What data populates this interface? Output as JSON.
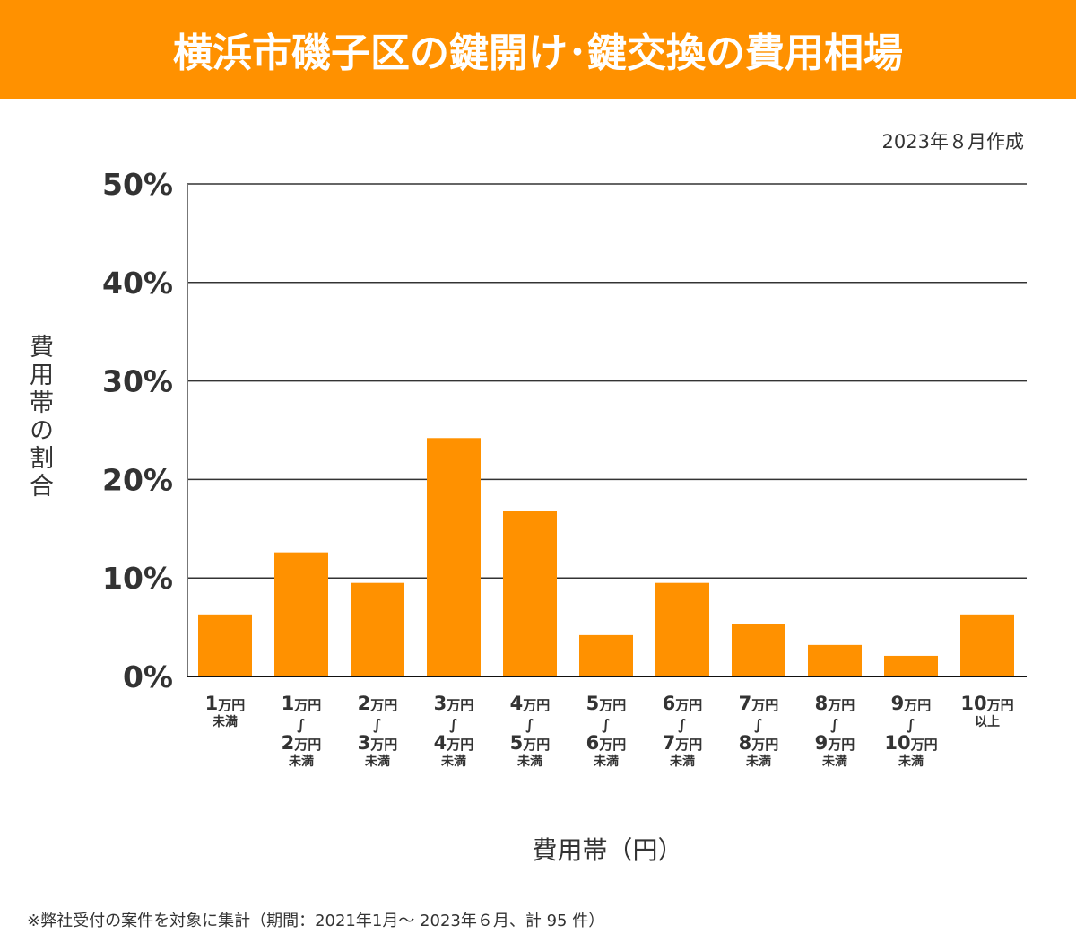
{
  "header": {
    "title": "横浜市磯子区の鍵開け･鍵交換の費用相場",
    "created": "2023年８月作成"
  },
  "footnote": "※弊社受付の案件を対象に集計（期間：2021年1月～ 2023年６月、計 95 件）",
  "colors": {
    "banner": "#ff9100",
    "bar": "#ff9100",
    "grid": "#333333",
    "axis": "#777777",
    "text": "#333333"
  },
  "chart_data": {
    "type": "bar",
    "title": "横浜市磯子区の鍵開け･鍵交換の費用相場",
    "xlabel": "費用帯（円）",
    "ylabel": "費用帯の割合",
    "ylim": [
      0,
      50
    ],
    "yticks": [
      0,
      10,
      20,
      30,
      40,
      50
    ],
    "ytick_labels": [
      "0%",
      "10%",
      "20%",
      "30%",
      "40%",
      "50%"
    ],
    "grid": true,
    "legend": "none",
    "categories": [
      {
        "lines": [
          {
            "num": "1",
            "unit": "万円"
          },
          {
            "small": "未満"
          }
        ]
      },
      {
        "lines": [
          {
            "num": "1",
            "unit": "万円"
          },
          {
            "wave": "∫"
          },
          {
            "num": "2",
            "unit": "万円"
          },
          {
            "small": "未満"
          }
        ]
      },
      {
        "lines": [
          {
            "num": "2",
            "unit": "万円"
          },
          {
            "wave": "∫"
          },
          {
            "num": "3",
            "unit": "万円"
          },
          {
            "small": "未満"
          }
        ]
      },
      {
        "lines": [
          {
            "num": "3",
            "unit": "万円"
          },
          {
            "wave": "∫"
          },
          {
            "num": "4",
            "unit": "万円"
          },
          {
            "small": "未満"
          }
        ]
      },
      {
        "lines": [
          {
            "num": "4",
            "unit": "万円"
          },
          {
            "wave": "∫"
          },
          {
            "num": "5",
            "unit": "万円"
          },
          {
            "small": "未満"
          }
        ]
      },
      {
        "lines": [
          {
            "num": "5",
            "unit": "万円"
          },
          {
            "wave": "∫"
          },
          {
            "num": "6",
            "unit": "万円"
          },
          {
            "small": "未満"
          }
        ]
      },
      {
        "lines": [
          {
            "num": "6",
            "unit": "万円"
          },
          {
            "wave": "∫"
          },
          {
            "num": "7",
            "unit": "万円"
          },
          {
            "small": "未満"
          }
        ]
      },
      {
        "lines": [
          {
            "num": "7",
            "unit": "万円"
          },
          {
            "wave": "∫"
          },
          {
            "num": "8",
            "unit": "万円"
          },
          {
            "small": "未満"
          }
        ]
      },
      {
        "lines": [
          {
            "num": "8",
            "unit": "万円"
          },
          {
            "wave": "∫"
          },
          {
            "num": "9",
            "unit": "万円"
          },
          {
            "small": "未満"
          }
        ]
      },
      {
        "lines": [
          {
            "num": "9",
            "unit": "万円"
          },
          {
            "wave": "∫"
          },
          {
            "num": "10",
            "unit": "万円"
          },
          {
            "small": "未満"
          }
        ]
      },
      {
        "lines": [
          {
            "num": "10",
            "unit": "万円"
          },
          {
            "small": "以上"
          }
        ]
      }
    ],
    "category_names": [
      "1万円未満",
      "1万円～2万円未満",
      "2万円～3万円未満",
      "3万円～4万円未満",
      "4万円～5万円未満",
      "5万円～6万円未満",
      "6万円～7万円未満",
      "7万円～8万円未満",
      "8万円～9万円未満",
      "9万円～10万円未満",
      "10万円以上"
    ],
    "values": [
      6.3,
      12.6,
      9.5,
      24.2,
      16.8,
      4.2,
      9.5,
      5.3,
      3.2,
      2.1,
      6.3
    ],
    "counts": [
      6,
      12,
      9,
      23,
      16,
      4,
      9,
      5,
      3,
      2,
      6
    ],
    "total": 95
  }
}
